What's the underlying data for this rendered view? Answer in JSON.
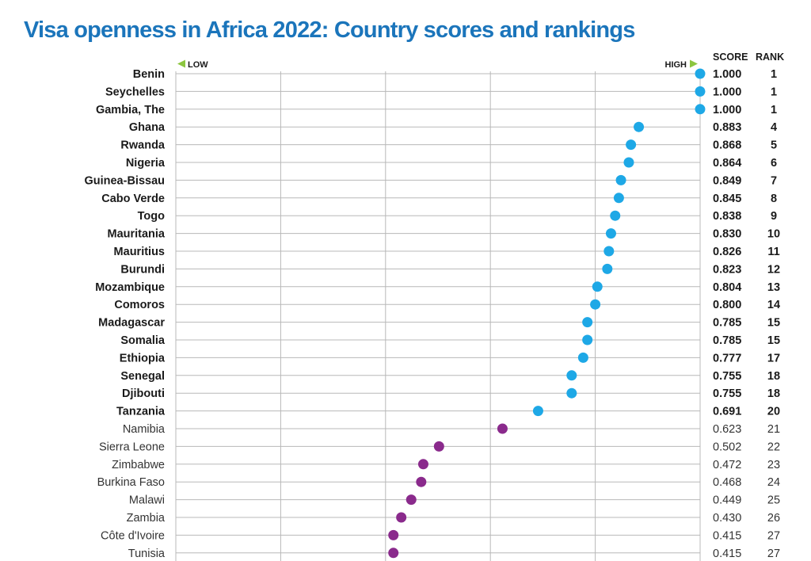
{
  "chart_data": {
    "type": "scatter",
    "title": "Visa openness in Africa 2022: Country scores and rankings",
    "low_label": "LOW",
    "high_label": "HIGH",
    "score_header": "SCORE",
    "rank_header": "RANK",
    "xlim": [
      0,
      1
    ],
    "grid": true,
    "colors": {
      "title": "#1b75bb",
      "top20": "#1ea8e6",
      "others": "#8a2a8c",
      "arrow": "#8cc63f",
      "grid": "#b8b8b8"
    },
    "rows": [
      {
        "country": "Benin",
        "score": 1.0,
        "score_label": "1.000",
        "rank": "1",
        "highlight": true
      },
      {
        "country": "Seychelles",
        "score": 1.0,
        "score_label": "1.000",
        "rank": "1",
        "highlight": true
      },
      {
        "country": "Gambia, The",
        "score": 1.0,
        "score_label": "1.000",
        "rank": "1",
        "highlight": true
      },
      {
        "country": "Ghana",
        "score": 0.883,
        "score_label": "0.883",
        "rank": "4",
        "highlight": true
      },
      {
        "country": "Rwanda",
        "score": 0.868,
        "score_label": "0.868",
        "rank": "5",
        "highlight": true
      },
      {
        "country": "Nigeria",
        "score": 0.864,
        "score_label": "0.864",
        "rank": "6",
        "highlight": true
      },
      {
        "country": "Guinea-Bissau",
        "score": 0.849,
        "score_label": "0.849",
        "rank": "7",
        "highlight": true
      },
      {
        "country": "Cabo Verde",
        "score": 0.845,
        "score_label": "0.845",
        "rank": "8",
        "highlight": true
      },
      {
        "country": "Togo",
        "score": 0.838,
        "score_label": "0.838",
        "rank": "9",
        "highlight": true
      },
      {
        "country": "Mauritania",
        "score": 0.83,
        "score_label": "0.830",
        "rank": "10",
        "highlight": true
      },
      {
        "country": "Mauritius",
        "score": 0.826,
        "score_label": "0.826",
        "rank": "11",
        "highlight": true
      },
      {
        "country": "Burundi",
        "score": 0.823,
        "score_label": "0.823",
        "rank": "12",
        "highlight": true
      },
      {
        "country": "Mozambique",
        "score": 0.804,
        "score_label": "0.804",
        "rank": "13",
        "highlight": true
      },
      {
        "country": "Comoros",
        "score": 0.8,
        "score_label": "0.800",
        "rank": "14",
        "highlight": true
      },
      {
        "country": "Madagascar",
        "score": 0.785,
        "score_label": "0.785",
        "rank": "15",
        "highlight": true
      },
      {
        "country": "Somalia",
        "score": 0.785,
        "score_label": "0.785",
        "rank": "15",
        "highlight": true
      },
      {
        "country": "Ethiopia",
        "score": 0.777,
        "score_label": "0.777",
        "rank": "17",
        "highlight": true
      },
      {
        "country": "Senegal",
        "score": 0.755,
        "score_label": "0.755",
        "rank": "18",
        "highlight": true
      },
      {
        "country": "Djibouti",
        "score": 0.755,
        "score_label": "0.755",
        "rank": "18",
        "highlight": true
      },
      {
        "country": "Tanzania",
        "score": 0.691,
        "score_label": "0.691",
        "rank": "20",
        "highlight": true
      },
      {
        "country": "Namibia",
        "score": 0.623,
        "score_label": "0.623",
        "rank": "21",
        "highlight": false
      },
      {
        "country": "Sierra Leone",
        "score": 0.502,
        "score_label": "0.502",
        "rank": "22",
        "highlight": false
      },
      {
        "country": "Zimbabwe",
        "score": 0.472,
        "score_label": "0.472",
        "rank": "23",
        "highlight": false
      },
      {
        "country": "Burkina Faso",
        "score": 0.468,
        "score_label": "0.468",
        "rank": "24",
        "highlight": false
      },
      {
        "country": "Malawi",
        "score": 0.449,
        "score_label": "0.449",
        "rank": "25",
        "highlight": false
      },
      {
        "country": "Zambia",
        "score": 0.43,
        "score_label": "0.430",
        "rank": "26",
        "highlight": false
      },
      {
        "country": "Côte d'Ivoire",
        "score": 0.415,
        "score_label": "0.415",
        "rank": "27",
        "highlight": false
      },
      {
        "country": "Tunisia",
        "score": 0.415,
        "score_label": "0.415",
        "rank": "27",
        "highlight": false
      }
    ]
  }
}
